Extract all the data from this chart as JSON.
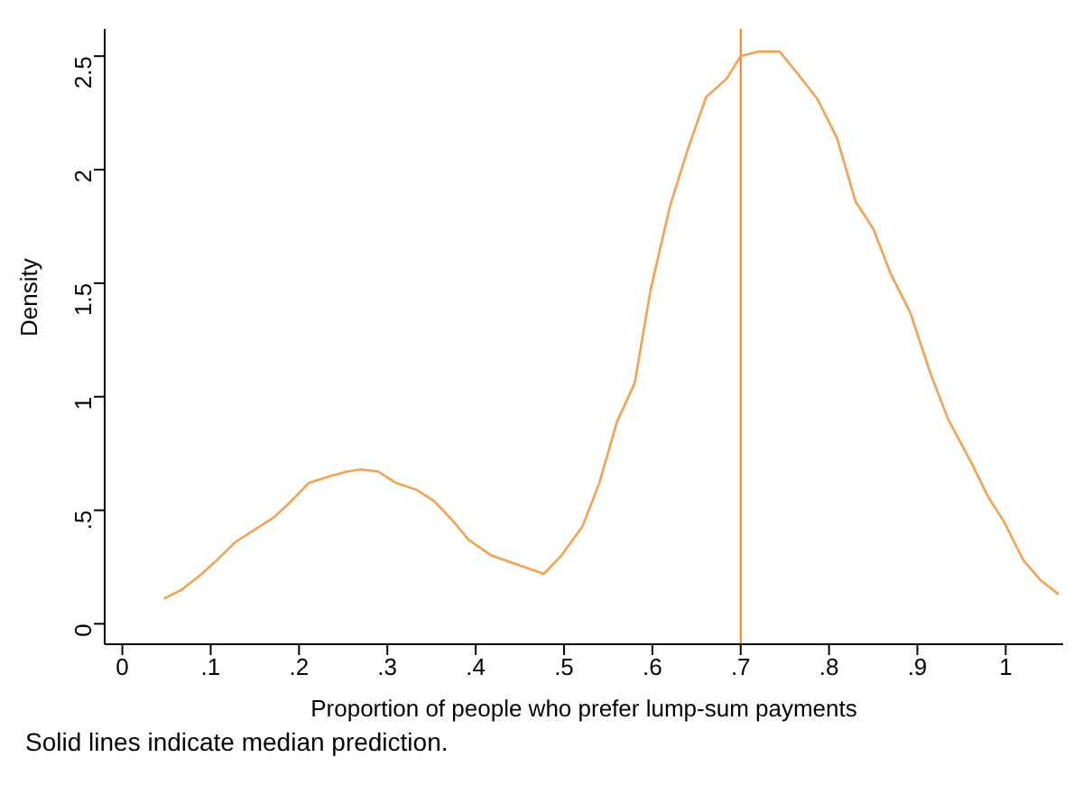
{
  "chart_data": {
    "type": "line",
    "xlabel": "Proportion of people who prefer lump-sum payments",
    "ylabel": "Density",
    "annotations": [
      "Solid lines indicate median prediction."
    ],
    "x": [
      0.047,
      0.067,
      0.087,
      0.107,
      0.128,
      0.152,
      0.172,
      0.191,
      0.211,
      0.235,
      0.254,
      0.27,
      0.29,
      0.31,
      0.333,
      0.353,
      0.375,
      0.392,
      0.418,
      0.448,
      0.477,
      0.497,
      0.521,
      0.54,
      0.56,
      0.58,
      0.598,
      0.62,
      0.641,
      0.661,
      0.684,
      0.7,
      0.72,
      0.744,
      0.763,
      0.787,
      0.809,
      0.83,
      0.85,
      0.87,
      0.892,
      0.915,
      0.935,
      0.961,
      0.98,
      0.998,
      1.02,
      1.04,
      1.06
    ],
    "series": [
      {
        "color": "#f4a153",
        "values": [
          0.11,
          0.15,
          0.21,
          0.28,
          0.36,
          0.42,
          0.47,
          0.54,
          0.62,
          0.65,
          0.67,
          0.68,
          0.67,
          0.62,
          0.59,
          0.54,
          0.45,
          0.37,
          0.3,
          0.26,
          0.22,
          0.3,
          0.43,
          0.62,
          0.89,
          1.06,
          1.47,
          1.84,
          2.1,
          2.32,
          2.4,
          2.5,
          2.52,
          2.52,
          2.43,
          2.31,
          2.14,
          1.86,
          1.74,
          1.54,
          1.37,
          1.1,
          0.9,
          0.71,
          0.56,
          0.45,
          0.28,
          0.19,
          0.13
        ]
      }
    ],
    "ref_lines": [
      {
        "axis": "x",
        "value": 0.7,
        "color": "#e8822c",
        "line_style": "solid"
      }
    ],
    "xlim": [
      -0.02,
      1.065
    ],
    "ylim": [
      -0.09,
      2.62
    ],
    "xticks": [
      0,
      {
        "value": 0.1,
        "label": ".1"
      },
      {
        "value": 0.2,
        "label": ".2"
      },
      {
        "value": 0.3,
        "label": ".3"
      },
      {
        "value": 0.4,
        "label": ".4"
      },
      {
        "value": 0.5,
        "label": ".5"
      },
      {
        "value": 0.6,
        "label": ".6"
      },
      {
        "value": 0.7,
        "label": ".7"
      },
      {
        "value": 0.8,
        "label": ".8"
      },
      {
        "value": 0.9,
        "label": ".9"
      },
      1
    ],
    "yticks": [
      0,
      {
        "value": 0.5,
        "label": ".5"
      },
      1,
      1.5,
      2,
      2.5
    ],
    "grid": false,
    "legend": false,
    "marker": "none",
    "line_style": "solid"
  }
}
